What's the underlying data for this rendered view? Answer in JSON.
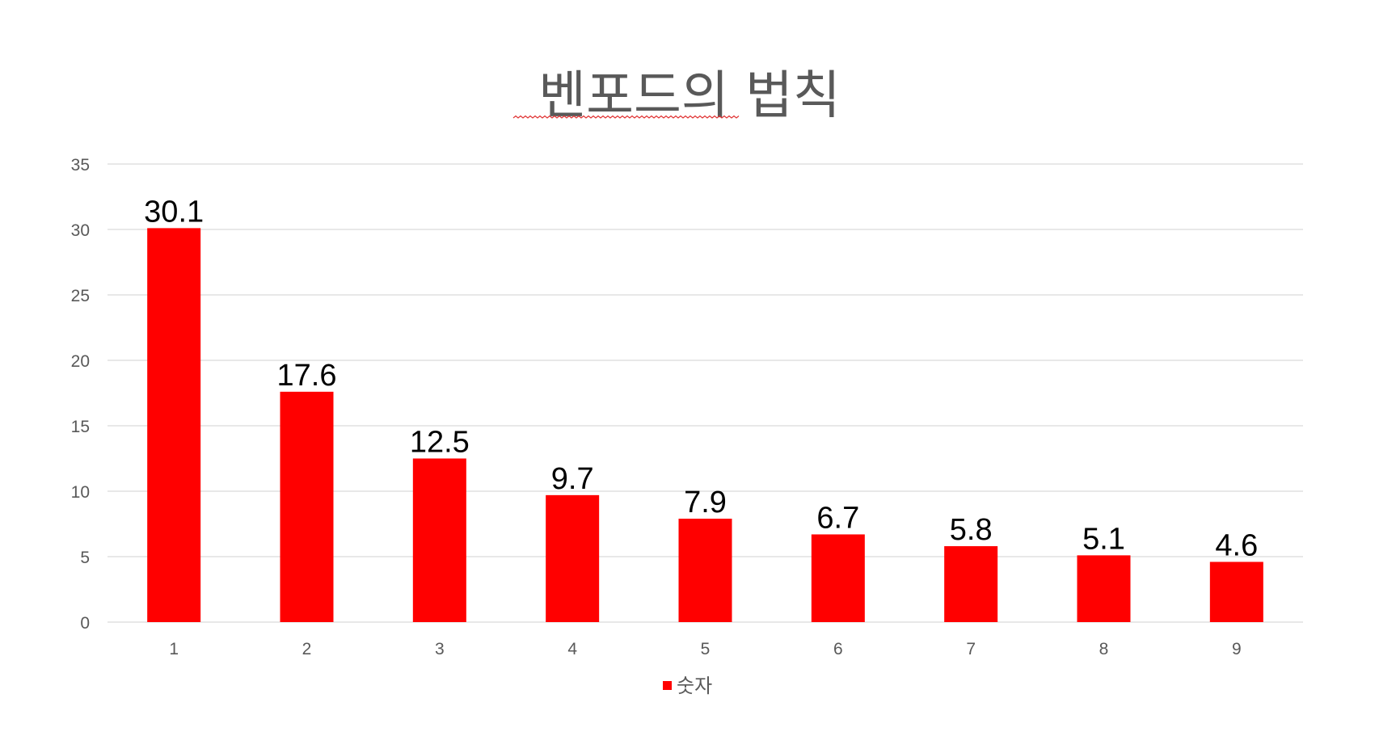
{
  "chart_data": {
    "type": "bar",
    "title": "벤포드의 법칙",
    "categories": [
      "1",
      "2",
      "3",
      "4",
      "5",
      "6",
      "7",
      "8",
      "9"
    ],
    "series": [
      {
        "name": "숫자",
        "values": [
          30.1,
          17.6,
          12.5,
          9.7,
          7.9,
          6.7,
          5.8,
          5.1,
          4.6
        ],
        "color": "#ff0000"
      }
    ],
    "ylim": [
      0,
      35
    ],
    "yticks": [
      "0",
      "5",
      "10",
      "15",
      "20",
      "25",
      "30",
      "35"
    ],
    "grid": true,
    "legend_position": "bottom",
    "data_labels": true,
    "colors": {
      "bar": "#ff0000",
      "grid": "#d9d9d9",
      "axis_text": "#595959",
      "title": "#595959",
      "label": "#000000"
    }
  }
}
